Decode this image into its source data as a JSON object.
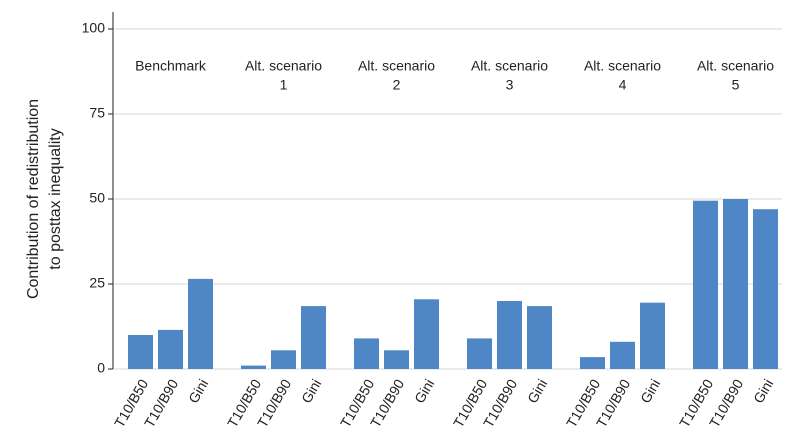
{
  "chart_data": {
    "type": "bar",
    "ylabel": [
      "Contribution of redistribution",
      "to posttax inequality"
    ],
    "categories": [
      "T10/B50",
      "T10/B90",
      "Gini"
    ],
    "groups": [
      {
        "label": [
          "Benchmark"
        ],
        "values": [
          10,
          11.5,
          26.5
        ]
      },
      {
        "label": [
          "Alt. scenario",
          "1"
        ],
        "values": [
          1,
          5.5,
          18.5
        ]
      },
      {
        "label": [
          "Alt. scenario",
          "2"
        ],
        "values": [
          9,
          5.5,
          20.5
        ]
      },
      {
        "label": [
          "Alt. scenario",
          "3"
        ],
        "values": [
          9,
          20,
          18.5
        ]
      },
      {
        "label": [
          "Alt. scenario",
          "4"
        ],
        "values": [
          3.5,
          8,
          19.5
        ]
      },
      {
        "label": [
          "Alt. scenario",
          "5"
        ],
        "values": [
          49.5,
          50,
          47
        ]
      }
    ],
    "color": "#4f86c6",
    "ylim": [
      0,
      100
    ],
    "yticks": [
      0,
      25,
      50,
      75,
      100
    ],
    "grid": true
  }
}
